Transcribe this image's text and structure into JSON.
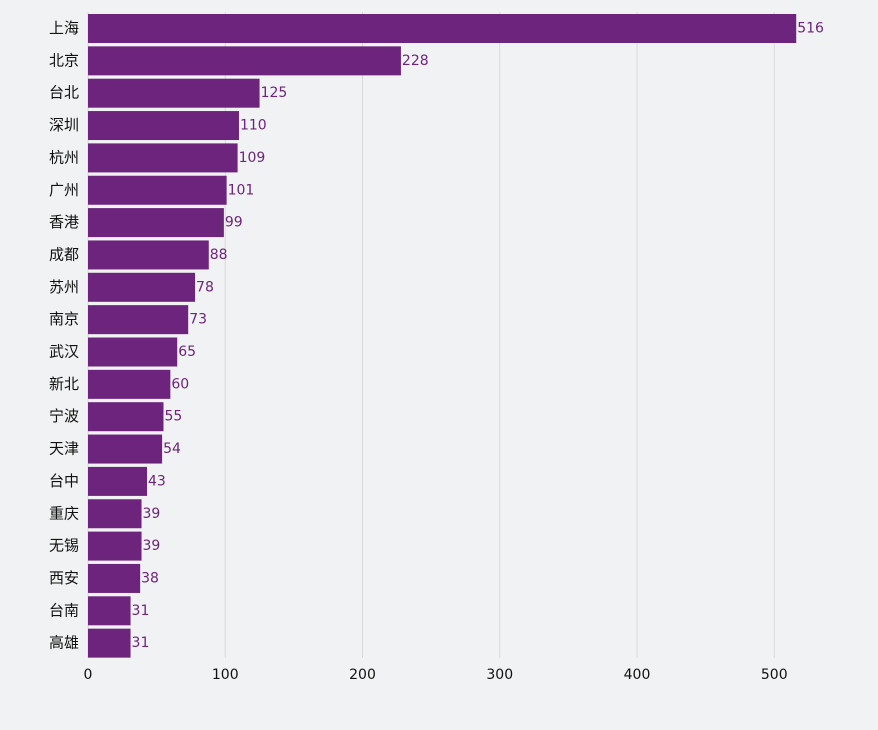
{
  "colors": {
    "background": "#f1f2f3",
    "bar": "#6d247d",
    "grid": "#d9d9d9",
    "value_label": "#6d247d"
  },
  "chart_data": {
    "type": "bar",
    "orientation": "horizontal",
    "title": "",
    "xlabel": "",
    "ylabel": "",
    "categories": [
      "上海",
      "北京",
      "台北",
      "深圳",
      "杭州",
      "广州",
      "香港",
      "成都",
      "苏州",
      "南京",
      "武汉",
      "新北",
      "宁波",
      "天津",
      "台中",
      "重庆",
      "无锡",
      "西安",
      "台南",
      "高雄"
    ],
    "values": [
      516,
      228,
      125,
      110,
      109,
      101,
      99,
      88,
      78,
      73,
      65,
      60,
      55,
      54,
      43,
      39,
      39,
      38,
      31,
      31
    ],
    "xlim": [
      0,
      550
    ],
    "xticks": [
      0,
      100,
      200,
      300,
      400,
      500
    ],
    "grid": true,
    "legend": "none",
    "data_labels": true
  }
}
